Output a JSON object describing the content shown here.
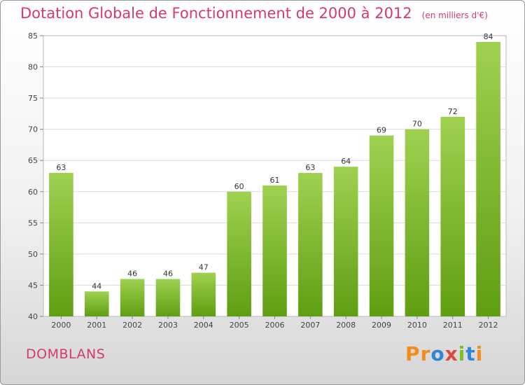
{
  "chart_data": {
    "type": "bar",
    "title": "Dotation Globale de Fonctionnement de 2000 à 2012",
    "subtitle": "(en milliers d'€)",
    "categories": [
      "2000",
      "2001",
      "2002",
      "2003",
      "2004",
      "2005",
      "2006",
      "2007",
      "2008",
      "2009",
      "2010",
      "2011",
      "2012"
    ],
    "values": [
      63,
      44,
      46,
      46,
      47,
      60,
      61,
      63,
      64,
      69,
      70,
      72,
      84
    ],
    "ylim": [
      40,
      85
    ],
    "yticks": [
      40,
      45,
      50,
      55,
      60,
      65,
      70,
      75,
      80,
      85
    ],
    "xlabel": "",
    "ylabel": "",
    "grid": true,
    "bar_color_top": "#9fd150",
    "bar_color_bottom": "#5f9e12"
  },
  "commune": "DOMBLANS",
  "logo": {
    "letters": [
      "P",
      "r",
      "o",
      "x",
      "i",
      "t",
      "i"
    ],
    "colors": [
      "#f28c1e",
      "#f28c1e",
      "#2e86d6",
      "#d94b3b",
      "#7cbf2a",
      "#2e86d6",
      "#f28c1e"
    ]
  }
}
